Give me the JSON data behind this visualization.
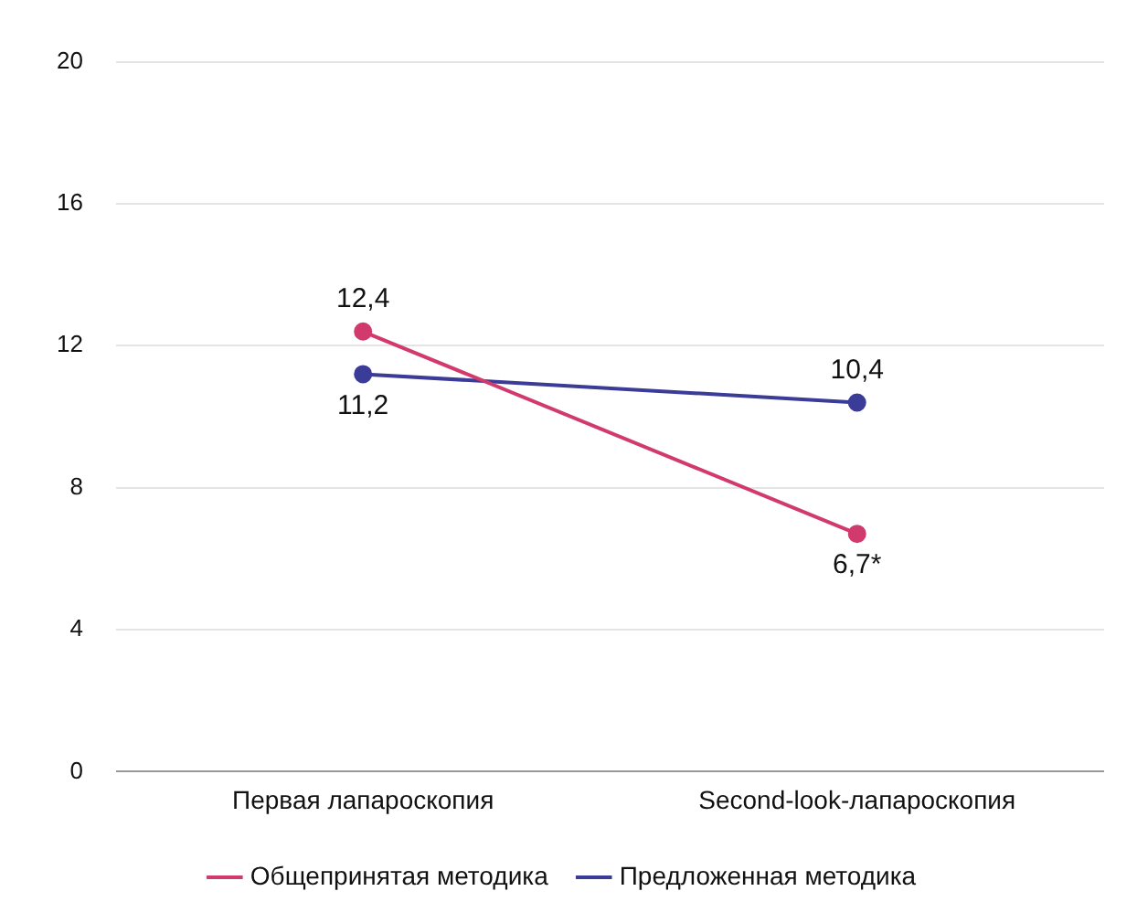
{
  "chart_data": {
    "type": "line",
    "categories": [
      "Первая лапароскопия",
      "Second-look-лапароскопия"
    ],
    "series": [
      {
        "name": "Общепринятая методика",
        "color": "#d13a6c",
        "values": [
          12.4,
          6.7
        ],
        "value_labels": [
          "12,4",
          "6,7*"
        ]
      },
      {
        "name": "Предложенная методика",
        "color": "#3b3b98",
        "values": [
          11.2,
          10.4
        ],
        "value_labels": [
          "11,2",
          "10,4"
        ]
      }
    ],
    "ylim": [
      0,
      20
    ],
    "yticks": [
      0,
      4,
      8,
      12,
      16,
      20
    ],
    "grid": "y",
    "legend": "bottom",
    "marker": "circle",
    "line_style": "solid"
  }
}
